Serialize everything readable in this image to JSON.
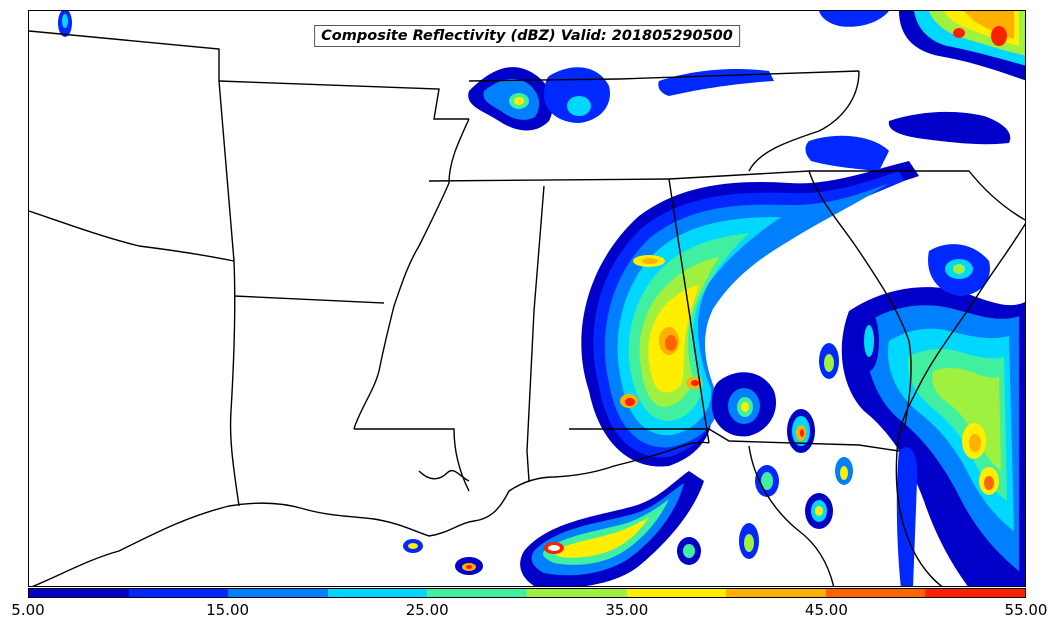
{
  "map": {
    "title": "Composite Reflectivity (dBZ) Valid: 201805290500"
  },
  "colorbar": {
    "colors": [
      "#0000c8",
      "#0028ff",
      "#0080ff",
      "#00d8ff",
      "#40f0a0",
      "#a0f040",
      "#ffee00",
      "#ffb000",
      "#ff6400",
      "#ff2000",
      "#c00000"
    ],
    "tick_labels": [
      "5.00",
      "15.00",
      "25.00",
      "35.00",
      "45.00",
      "55.00"
    ],
    "range_dbz": [
      5,
      55
    ],
    "step_dbz": 5
  }
}
